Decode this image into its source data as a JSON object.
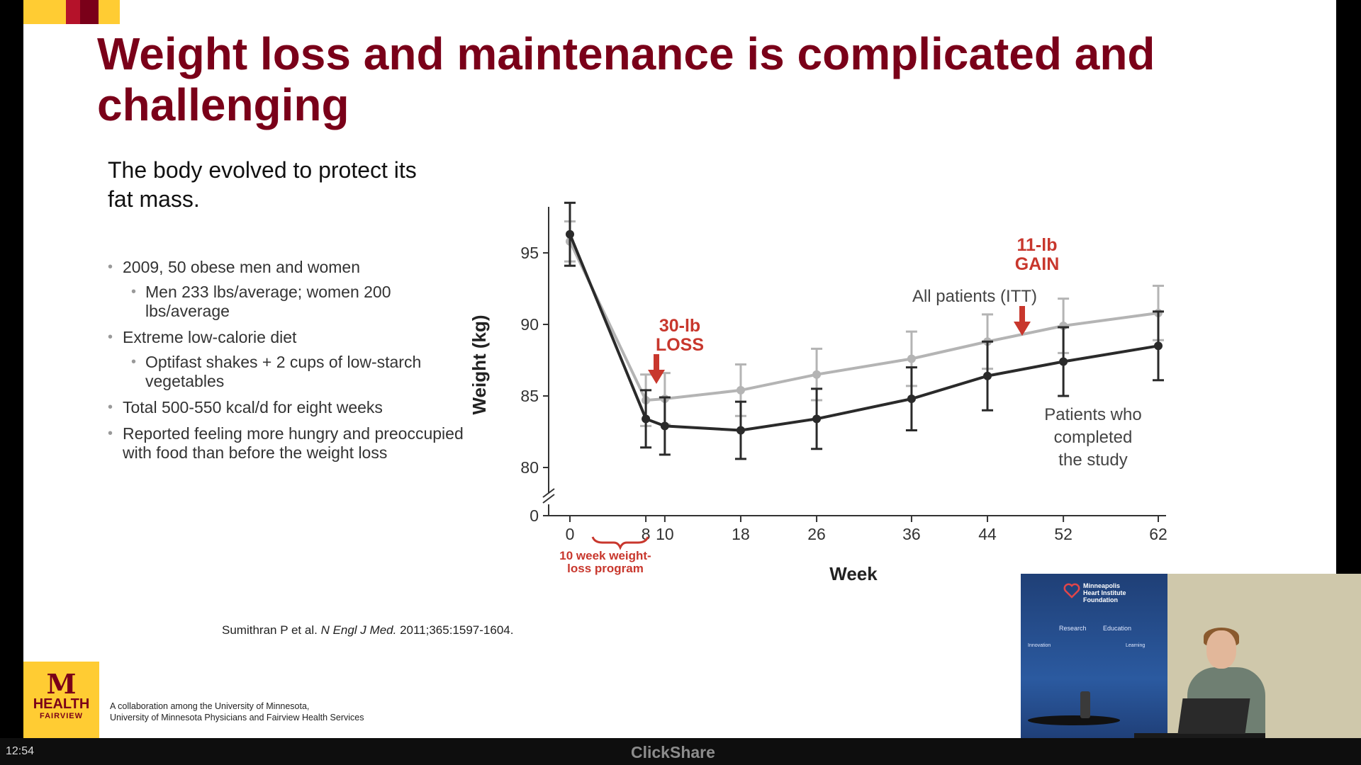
{
  "slide": {
    "title": "Weight loss and maintenance is complicated and challenging",
    "intro": "The body evolved to protect its fat mass.",
    "bullets": [
      {
        "level": 1,
        "text": "2009, 50 obese men and women"
      },
      {
        "level": 2,
        "text": "Men 233 lbs/average; women 200 lbs/average"
      },
      {
        "level": 1,
        "text": "Extreme low-calorie diet"
      },
      {
        "level": 2,
        "text": "Optifast shakes + 2 cups of low-starch vegetables"
      },
      {
        "level": 1,
        "text": "Total 500-550 kcal/d for eight weeks"
      },
      {
        "level": 1,
        "text": "Reported feeling more hungry and preoccupied with food than before the weight loss"
      }
    ],
    "citation": {
      "authors": "Sumithran P et al.",
      "journal": "N Engl J Med.",
      "details": "2011;365:1597-1604."
    },
    "footer": {
      "logo_m": "M",
      "logo_health": "HEALTH",
      "logo_fairview": "FAIRVIEW",
      "line1": "A collaboration among the University of Minnesota,",
      "line2": "University of Minnesota Physicians and Fairview Health Services"
    }
  },
  "chart_data": {
    "type": "line",
    "xlabel": "Week",
    "ylabel": "Weight (kg)",
    "x_ticks": [
      0,
      8,
      10,
      18,
      26,
      36,
      44,
      52,
      62
    ],
    "y_ticks": [
      0,
      80,
      85,
      90,
      95
    ],
    "ylim_broken": [
      78,
      97
    ],
    "series": [
      {
        "name": "All patients (ITT)",
        "color": "#b4b4b4",
        "x": [
          0,
          8,
          10,
          18,
          26,
          36,
          44,
          52,
          62
        ],
        "y": [
          95.8,
          84.7,
          84.8,
          85.4,
          86.5,
          87.6,
          88.8,
          89.9,
          90.8
        ],
        "err": [
          1.4,
          1.8,
          1.8,
          1.8,
          1.8,
          1.9,
          1.9,
          1.9,
          1.9
        ]
      },
      {
        "name": "Patients who completed the study",
        "color": "#2a2a2a",
        "x": [
          0,
          8,
          10,
          18,
          26,
          36,
          44,
          52,
          62
        ],
        "y": [
          96.3,
          83.4,
          82.9,
          82.6,
          83.4,
          84.8,
          86.4,
          87.4,
          88.5
        ],
        "err": [
          2.2,
          2.0,
          2.0,
          2.0,
          2.1,
          2.2,
          2.4,
          2.4,
          2.4
        ]
      }
    ],
    "annotations": {
      "loss_line1": "30-lb",
      "loss_line2": "LOSS",
      "gain_line1": "11-lb",
      "gain_line2": "GAIN",
      "program_line1": "10 week weight-",
      "program_line2": "loss program",
      "itt_label": "All patients (ITT)",
      "completed_line1": "Patients who",
      "completed_line2": "completed",
      "completed_line3": "the study"
    },
    "annotation_color": "#C8372D"
  },
  "pip": {
    "backdrop_title_line1": "Minneapolis",
    "backdrop_title_line2": "Heart Institute",
    "backdrop_title_line3": "Foundation",
    "backdrop_labels": [
      "Research",
      "Education",
      "Innovation",
      "Learning"
    ]
  },
  "status_bar": {
    "clock": "12:54",
    "brand": "ClickShare"
  }
}
